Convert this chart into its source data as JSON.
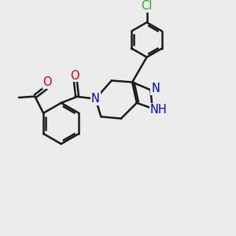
{
  "bg": "#EBEBEB",
  "bond_color": "#1a1a1a",
  "bond_lw": 1.8,
  "atom_colors": {
    "O": "#DD0000",
    "N": "#0000CC",
    "Cl": "#22AA22",
    "C": "#1a1a1a"
  },
  "fs": 9.5,
  "figsize": [
    3.0,
    3.0
  ],
  "dpi": 100,
  "xlim": [
    0,
    10
  ],
  "ylim": [
    0,
    10
  ]
}
